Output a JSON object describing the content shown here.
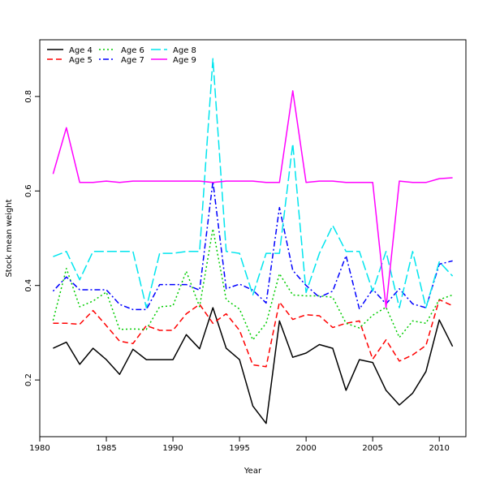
{
  "chart_data": {
    "type": "line",
    "title": "",
    "xlabel": "Year",
    "ylabel": "Stock mean weight",
    "xlim": [
      1980,
      2012
    ],
    "ylim": [
      0.08,
      0.92
    ],
    "xticks": [
      1980,
      1985,
      1990,
      1995,
      2000,
      2005,
      2010
    ],
    "yticks": [
      0.2,
      0.4,
      0.6,
      0.8
    ],
    "legend_position": "top-left",
    "x": [
      1981,
      1982,
      1983,
      1984,
      1985,
      1986,
      1987,
      1988,
      1989,
      1990,
      1991,
      1992,
      1993,
      1994,
      1995,
      1996,
      1997,
      1998,
      1999,
      2000,
      2001,
      2002,
      2003,
      2004,
      2005,
      2006,
      2007,
      2008,
      2009,
      2010,
      2011
    ],
    "series": [
      {
        "name": "Age 4",
        "color": "#000000",
        "dash": "solid",
        "values": [
          0.267,
          0.28,
          0.233,
          0.267,
          0.243,
          0.212,
          0.265,
          0.243,
          0.243,
          0.243,
          0.296,
          0.266,
          0.353,
          0.267,
          0.243,
          0.145,
          0.108,
          0.325,
          0.248,
          0.257,
          0.275,
          0.267,
          0.178,
          0.243,
          0.237,
          0.178,
          0.147,
          0.172,
          0.218,
          0.327,
          0.271
        ]
      },
      {
        "name": "Age 5",
        "color": "#ff0000",
        "dash": "dashed",
        "values": [
          0.32,
          0.32,
          0.318,
          0.347,
          0.315,
          0.282,
          0.277,
          0.315,
          0.305,
          0.305,
          0.34,
          0.36,
          0.32,
          0.34,
          0.305,
          0.232,
          0.228,
          0.365,
          0.328,
          0.338,
          0.336,
          0.311,
          0.32,
          0.325,
          0.244,
          0.285,
          0.24,
          0.253,
          0.273,
          0.37,
          0.357
        ]
      },
      {
        "name": "Age 6",
        "color": "#00cc00",
        "dash": "dotted",
        "values": [
          0.326,
          0.436,
          0.355,
          0.367,
          0.386,
          0.307,
          0.308,
          0.307,
          0.355,
          0.357,
          0.43,
          0.355,
          0.52,
          0.37,
          0.35,
          0.285,
          0.32,
          0.425,
          0.38,
          0.378,
          0.378,
          0.375,
          0.32,
          0.31,
          0.337,
          0.354,
          0.29,
          0.325,
          0.32,
          0.37,
          0.38
        ]
      },
      {
        "name": "Age 7",
        "color": "#0000ff",
        "dash": "dotdash",
        "values": [
          0.388,
          0.418,
          0.391,
          0.391,
          0.391,
          0.36,
          0.349,
          0.349,
          0.402,
          0.402,
          0.402,
          0.39,
          0.62,
          0.393,
          0.403,
          0.39,
          0.363,
          0.565,
          0.432,
          0.4,
          0.375,
          0.388,
          0.463,
          0.35,
          0.392,
          0.361,
          0.393,
          0.361,
          0.353,
          0.445,
          0.452
        ]
      },
      {
        "name": "Age 8",
        "color": "#00e5ee",
        "dash": "longdash",
        "values": [
          0.461,
          0.472,
          0.412,
          0.472,
          0.472,
          0.472,
          0.472,
          0.353,
          0.468,
          0.468,
          0.472,
          0.472,
          0.88,
          0.472,
          0.468,
          0.38,
          0.468,
          0.468,
          0.7,
          0.385,
          0.468,
          0.527,
          0.472,
          0.472,
          0.388,
          0.472,
          0.353,
          0.472,
          0.353,
          0.45,
          0.42
        ]
      },
      {
        "name": "Age 9",
        "color": "#ff00ff",
        "dash": "solid",
        "values": [
          0.636,
          0.734,
          0.618,
          0.618,
          0.621,
          0.618,
          0.621,
          0.621,
          0.621,
          0.621,
          0.621,
          0.621,
          0.618,
          0.621,
          0.621,
          0.621,
          0.618,
          0.618,
          0.812,
          0.618,
          0.621,
          0.621,
          0.618,
          0.618,
          0.618,
          0.353,
          0.621,
          0.618,
          0.618,
          0.626,
          0.628
        ]
      }
    ]
  }
}
